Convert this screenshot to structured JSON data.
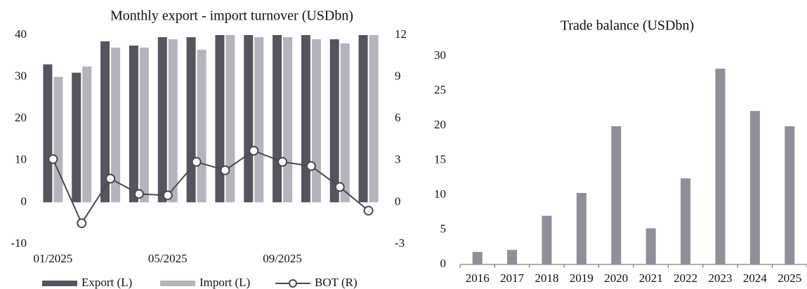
{
  "chart_data": [
    {
      "type": "bar",
      "title": "Monthly export - import turnover (USDbn)",
      "categories": [
        "01/2025",
        null,
        null,
        null,
        "05/2025",
        null,
        null,
        null,
        "09/2025",
        null,
        null,
        null
      ],
      "series": [
        {
          "name": "Export (L)",
          "color": "#55555f",
          "values": [
            33,
            31,
            38.5,
            37.5,
            39.5,
            39.5,
            40,
            40,
            40,
            40,
            39,
            40
          ]
        },
        {
          "name": "Import (L)",
          "color": "#b4b4bc",
          "values": [
            30,
            32.5,
            37,
            37,
            39,
            36.5,
            40,
            39.5,
            39.5,
            39,
            38,
            40
          ]
        },
        {
          "name": "BOT (R)",
          "type": "line",
          "axis": "y2",
          "color": "#4a4a4a",
          "values": [
            3.1,
            -1.5,
            1.7,
            0.6,
            0.5,
            2.9,
            2.3,
            3.7,
            2.9,
            2.6,
            1.1,
            -0.6
          ]
        }
      ],
      "ylim": [
        -10,
        40
      ],
      "yticks": [
        -10,
        0,
        10,
        20,
        30,
        40
      ],
      "y2lim": [
        -3,
        12
      ],
      "y2ticks": [
        -3,
        0,
        3,
        6,
        9,
        12
      ],
      "legend": "bottom"
    },
    {
      "type": "bar",
      "title": "Trade balance (USDbn)",
      "categories": [
        "2016",
        "2017",
        "2018",
        "2019",
        "2020",
        "2021",
        "2022",
        "2023",
        "2024",
        "2025"
      ],
      "values": [
        1.8,
        2.1,
        7.0,
        10.3,
        19.9,
        5.2,
        12.4,
        28.2,
        22.1,
        19.9
      ],
      "color": "#8f8f99",
      "ylim": [
        0,
        30
      ],
      "yticks": [
        0,
        5,
        10,
        15,
        20,
        25,
        30
      ]
    }
  ]
}
